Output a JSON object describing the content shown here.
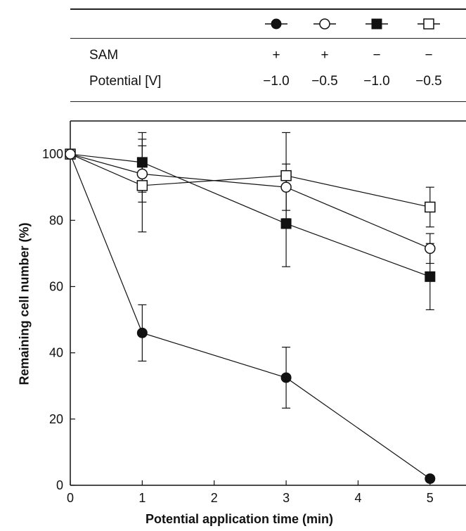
{
  "legend_table": {
    "rows": [
      {
        "label": "SAM",
        "values": [
          "+",
          "+",
          "−",
          "−"
        ]
      },
      {
        "label": "Potential [V]",
        "values": [
          "−1.0",
          "−0.5",
          "−1.0",
          "−0.5"
        ]
      }
    ],
    "series_markers": [
      "filled-circle",
      "open-circle",
      "filled-square",
      "open-square"
    ]
  },
  "chart_data": {
    "type": "line",
    "xlabel": "Potential application time (min)",
    "ylabel": "Remaining cell number (%)",
    "xlim": [
      0,
      5.5
    ],
    "ylim": [
      0,
      110
    ],
    "xticks": [
      0,
      1,
      2,
      3,
      4,
      5
    ],
    "yticks": [
      0,
      20,
      40,
      60,
      80,
      100
    ],
    "grid": false,
    "series": [
      {
        "marker": "filled-circle",
        "x": [
          0,
          1,
          3,
          5
        ],
        "y": [
          100,
          46,
          32.5,
          2
        ],
        "err": [
          0,
          8.5,
          9.2,
          0
        ]
      },
      {
        "marker": "open-circle",
        "x": [
          0,
          1,
          3,
          5
        ],
        "y": [
          100,
          94,
          90,
          71.5
        ],
        "err": [
          0,
          8.5,
          7,
          4.5
        ]
      },
      {
        "marker": "filled-square",
        "x": [
          0,
          1,
          3,
          5
        ],
        "y": [
          100,
          97.5,
          79,
          63
        ],
        "err": [
          0,
          9,
          13,
          10
        ]
      },
      {
        "marker": "open-square",
        "x": [
          0,
          1,
          3,
          5
        ],
        "y": [
          100,
          90.5,
          93.5,
          84
        ],
        "err": [
          0,
          14,
          13,
          6
        ]
      }
    ]
  }
}
